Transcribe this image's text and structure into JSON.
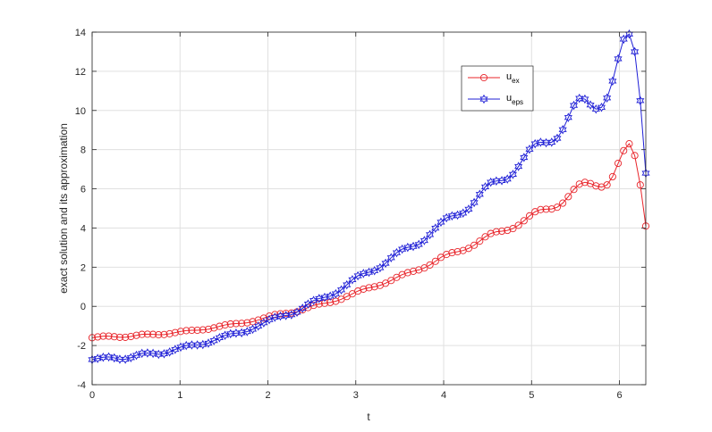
{
  "chart_data": {
    "type": "line",
    "xlabel": "t",
    "ylabel": "exact solution and its approximation",
    "xlim": [
      0,
      6.3
    ],
    "ylim": [
      -4,
      14
    ],
    "xticks": [
      "0",
      "1",
      "2",
      "3",
      "4",
      "5",
      "6"
    ],
    "yticks": [
      "-4",
      "-2",
      "0",
      "2",
      "4",
      "6",
      "8",
      "10",
      "12",
      "14"
    ],
    "grid": true,
    "legend_position": "upper-right inside",
    "x": [
      0.0,
      0.063,
      0.126,
      0.189,
      0.252,
      0.315,
      0.378,
      0.441,
      0.504,
      0.567,
      0.63,
      0.693,
      0.756,
      0.819,
      0.882,
      0.945,
      1.008,
      1.071,
      1.134,
      1.197,
      1.26,
      1.323,
      1.386,
      1.449,
      1.512,
      1.575,
      1.638,
      1.701,
      1.764,
      1.827,
      1.89,
      1.953,
      2.016,
      2.079,
      2.142,
      2.205,
      2.268,
      2.331,
      2.394,
      2.457,
      2.52,
      2.583,
      2.646,
      2.709,
      2.772,
      2.835,
      2.898,
      2.961,
      3.024,
      3.087,
      3.15,
      3.213,
      3.276,
      3.339,
      3.402,
      3.465,
      3.528,
      3.591,
      3.654,
      3.717,
      3.78,
      3.843,
      3.906,
      3.969,
      4.032,
      4.095,
      4.158,
      4.221,
      4.284,
      4.347,
      4.41,
      4.473,
      4.536,
      4.599,
      4.662,
      4.725,
      4.788,
      4.851,
      4.914,
      4.977,
      5.04,
      5.103,
      5.166,
      5.229,
      5.292,
      5.355,
      5.418,
      5.481,
      5.544,
      5.607,
      5.67,
      5.733,
      5.796,
      5.859,
      5.922,
      5.985,
      6.048,
      6.111,
      6.174,
      6.237,
      6.3
    ],
    "series": [
      {
        "name": "u",
        "name_sub": "ex",
        "color": "#e8242a",
        "marker": "circle",
        "values": [
          -1.6,
          -1.56,
          -1.52,
          -1.52,
          -1.55,
          -1.58,
          -1.58,
          -1.54,
          -1.48,
          -1.43,
          -1.42,
          -1.43,
          -1.45,
          -1.44,
          -1.4,
          -1.34,
          -1.28,
          -1.24,
          -1.22,
          -1.22,
          -1.2,
          -1.17,
          -1.1,
          -1.02,
          -0.95,
          -0.9,
          -0.88,
          -0.87,
          -0.84,
          -0.78,
          -0.7,
          -0.6,
          -0.5,
          -0.42,
          -0.38,
          -0.36,
          -0.34,
          -0.28,
          -0.18,
          -0.06,
          0.05,
          0.12,
          0.16,
          0.2,
          0.26,
          0.36,
          0.5,
          0.64,
          0.78,
          0.88,
          0.95,
          1.0,
          1.07,
          1.18,
          1.32,
          1.48,
          1.62,
          1.72,
          1.79,
          1.86,
          1.96,
          2.11,
          2.3,
          2.5,
          2.65,
          2.74,
          2.79,
          2.85,
          2.96,
          3.12,
          3.33,
          3.55,
          3.72,
          3.81,
          3.84,
          3.88,
          3.97,
          4.14,
          4.37,
          4.62,
          4.83,
          4.94,
          4.96,
          4.97,
          5.06,
          5.27,
          5.6,
          5.97,
          6.24,
          6.33,
          6.27,
          6.15,
          6.09,
          6.2,
          6.62,
          7.3,
          7.95,
          8.3,
          7.7,
          6.2,
          4.1
        ]
      },
      {
        "name": "u",
        "name_sub": "eps",
        "color": "#1f1fd6",
        "marker": "star",
        "values": [
          -2.72,
          -2.66,
          -2.6,
          -2.58,
          -2.63,
          -2.7,
          -2.7,
          -2.62,
          -2.5,
          -2.4,
          -2.38,
          -2.4,
          -2.45,
          -2.42,
          -2.33,
          -2.2,
          -2.08,
          -2.0,
          -1.97,
          -1.97,
          -1.95,
          -1.88,
          -1.75,
          -1.6,
          -1.48,
          -1.4,
          -1.37,
          -1.35,
          -1.29,
          -1.17,
          -1.01,
          -0.84,
          -0.68,
          -0.56,
          -0.5,
          -0.47,
          -0.43,
          -0.3,
          -0.1,
          0.12,
          0.3,
          0.4,
          0.46,
          0.52,
          0.64,
          0.84,
          1.1,
          1.36,
          1.56,
          1.68,
          1.74,
          1.82,
          1.97,
          2.2,
          2.48,
          2.74,
          2.92,
          3.01,
          3.06,
          3.16,
          3.36,
          3.66,
          3.99,
          4.3,
          4.52,
          4.62,
          4.66,
          4.76,
          4.96,
          5.3,
          5.72,
          6.1,
          6.34,
          6.4,
          6.42,
          6.5,
          6.74,
          7.14,
          7.6,
          8.02,
          8.3,
          8.38,
          8.35,
          8.38,
          8.58,
          9.02,
          9.64,
          10.26,
          10.62,
          10.58,
          10.28,
          10.07,
          10.16,
          10.64,
          11.5,
          12.64,
          13.64,
          13.9,
          13.0,
          10.5,
          6.8
        ]
      }
    ]
  }
}
